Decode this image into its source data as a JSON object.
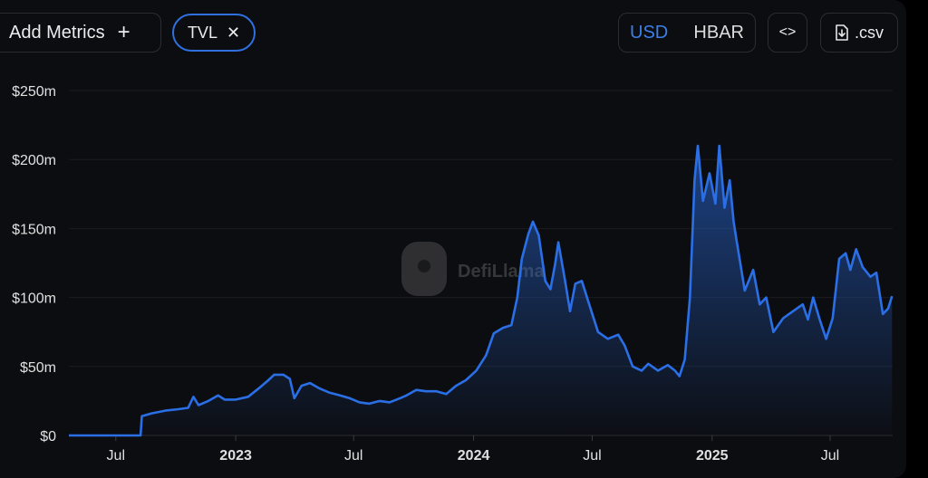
{
  "toolbar": {
    "add_metrics_label": "Add Metrics",
    "add_metrics_icon": "plus-icon",
    "tvl_chip_label": "TVL",
    "tvl_chip_icon": "close-icon",
    "currency_options": [
      "USD",
      "HBAR"
    ],
    "currency_selected": "USD",
    "embed_label": "<>",
    "csv_label": ".csv",
    "csv_icon": "file-download-icon"
  },
  "colors": {
    "accent": "#2f6fde",
    "line": "#2b6fe6",
    "background": "#0c0d10"
  },
  "watermark": "DefiLlama",
  "chart_data": {
    "type": "area",
    "title": "",
    "xlabel": "",
    "ylabel": "",
    "ylim": [
      0,
      250000000
    ],
    "y_ticks": [
      {
        "value": 0,
        "label": "$0"
      },
      {
        "value": 50000000,
        "label": "$50m"
      },
      {
        "value": 100000000,
        "label": "$100m"
      },
      {
        "value": 150000000,
        "label": "$150m"
      },
      {
        "value": 200000000,
        "label": "$200m"
      },
      {
        "value": 250000000,
        "label": "$250m"
      }
    ],
    "xlim": [
      "2022-04-20",
      "2025-10-05"
    ],
    "x_ticks": [
      {
        "date": "2022-07-01",
        "label": "Jul",
        "bold": false
      },
      {
        "date": "2023-01-01",
        "label": "2023",
        "bold": true
      },
      {
        "date": "2023-07-01",
        "label": "Jul",
        "bold": false
      },
      {
        "date": "2024-01-01",
        "label": "2024",
        "bold": true
      },
      {
        "date": "2024-07-01",
        "label": "Jul",
        "bold": false
      },
      {
        "date": "2025-01-01",
        "label": "2025",
        "bold": true
      },
      {
        "date": "2025-07-01",
        "label": "Jul",
        "bold": false
      }
    ],
    "grid": true,
    "legend": "none",
    "series": [
      {
        "name": "TVL",
        "points": [
          [
            "2022-04-20",
            0
          ],
          [
            "2022-08-08",
            0
          ],
          [
            "2022-08-10",
            14000000
          ],
          [
            "2022-08-25",
            16000000
          ],
          [
            "2022-09-15",
            18000000
          ],
          [
            "2022-10-05",
            19000000
          ],
          [
            "2022-10-20",
            20000000
          ],
          [
            "2022-10-28",
            28000000
          ],
          [
            "2022-11-05",
            22000000
          ],
          [
            "2022-11-20",
            25000000
          ],
          [
            "2022-12-05",
            29000000
          ],
          [
            "2022-12-15",
            26000000
          ],
          [
            "2023-01-01",
            26000000
          ],
          [
            "2023-01-20",
            28000000
          ],
          [
            "2023-02-05",
            34000000
          ],
          [
            "2023-02-20",
            40000000
          ],
          [
            "2023-03-01",
            44000000
          ],
          [
            "2023-03-15",
            44000000
          ],
          [
            "2023-03-25",
            41000000
          ],
          [
            "2023-04-01",
            27000000
          ],
          [
            "2023-04-12",
            36000000
          ],
          [
            "2023-04-25",
            38000000
          ],
          [
            "2023-05-10",
            34000000
          ],
          [
            "2023-05-25",
            31000000
          ],
          [
            "2023-06-10",
            29000000
          ],
          [
            "2023-06-25",
            27000000
          ],
          [
            "2023-07-10",
            24000000
          ],
          [
            "2023-07-25",
            23000000
          ],
          [
            "2023-08-10",
            25000000
          ],
          [
            "2023-08-25",
            24000000
          ],
          [
            "2023-09-10",
            27000000
          ],
          [
            "2023-09-20",
            29000000
          ],
          [
            "2023-10-05",
            33000000
          ],
          [
            "2023-10-20",
            32000000
          ],
          [
            "2023-11-05",
            32000000
          ],
          [
            "2023-11-20",
            30000000
          ],
          [
            "2023-12-05",
            36000000
          ],
          [
            "2023-12-20",
            40000000
          ],
          [
            "2024-01-05",
            47000000
          ],
          [
            "2024-01-20",
            58000000
          ],
          [
            "2024-02-01",
            74000000
          ],
          [
            "2024-02-15",
            78000000
          ],
          [
            "2024-02-28",
            80000000
          ],
          [
            "2024-03-08",
            100000000
          ],
          [
            "2024-03-15",
            128000000
          ],
          [
            "2024-03-25",
            146000000
          ],
          [
            "2024-04-01",
            155000000
          ],
          [
            "2024-04-10",
            145000000
          ],
          [
            "2024-04-20",
            112000000
          ],
          [
            "2024-04-28",
            106000000
          ],
          [
            "2024-05-05",
            124000000
          ],
          [
            "2024-05-10",
            140000000
          ],
          [
            "2024-05-20",
            113000000
          ],
          [
            "2024-05-28",
            90000000
          ],
          [
            "2024-06-05",
            110000000
          ],
          [
            "2024-06-15",
            112000000
          ],
          [
            "2024-06-25",
            97000000
          ],
          [
            "2024-07-10",
            75000000
          ],
          [
            "2024-07-25",
            70000000
          ],
          [
            "2024-08-10",
            73000000
          ],
          [
            "2024-08-20",
            65000000
          ],
          [
            "2024-09-01",
            50000000
          ],
          [
            "2024-09-15",
            47000000
          ],
          [
            "2024-09-25",
            52000000
          ],
          [
            "2024-10-10",
            47000000
          ],
          [
            "2024-10-25",
            51000000
          ],
          [
            "2024-11-05",
            47000000
          ],
          [
            "2024-11-12",
            43000000
          ],
          [
            "2024-11-20",
            55000000
          ],
          [
            "2024-11-28",
            100000000
          ],
          [
            "2024-12-05",
            185000000
          ],
          [
            "2024-12-10",
            210000000
          ],
          [
            "2024-12-18",
            170000000
          ],
          [
            "2024-12-28",
            190000000
          ],
          [
            "2025-01-06",
            168000000
          ],
          [
            "2025-01-12",
            210000000
          ],
          [
            "2025-01-20",
            165000000
          ],
          [
            "2025-01-28",
            185000000
          ],
          [
            "2025-02-03",
            155000000
          ],
          [
            "2025-02-08",
            140000000
          ],
          [
            "2025-02-20",
            105000000
          ],
          [
            "2025-03-05",
            120000000
          ],
          [
            "2025-03-15",
            95000000
          ],
          [
            "2025-03-25",
            100000000
          ],
          [
            "2025-04-05",
            75000000
          ],
          [
            "2025-04-20",
            85000000
          ],
          [
            "2025-05-05",
            90000000
          ],
          [
            "2025-05-20",
            95000000
          ],
          [
            "2025-05-28",
            84000000
          ],
          [
            "2025-06-05",
            100000000
          ],
          [
            "2025-06-15",
            84000000
          ],
          [
            "2025-06-25",
            70000000
          ],
          [
            "2025-07-05",
            85000000
          ],
          [
            "2025-07-15",
            128000000
          ],
          [
            "2025-07-25",
            132000000
          ],
          [
            "2025-08-01",
            120000000
          ],
          [
            "2025-08-10",
            135000000
          ],
          [
            "2025-08-20",
            122000000
          ],
          [
            "2025-09-01",
            115000000
          ],
          [
            "2025-09-10",
            118000000
          ],
          [
            "2025-09-20",
            88000000
          ],
          [
            "2025-09-28",
            92000000
          ],
          [
            "2025-10-04",
            101000000
          ]
        ]
      }
    ]
  }
}
